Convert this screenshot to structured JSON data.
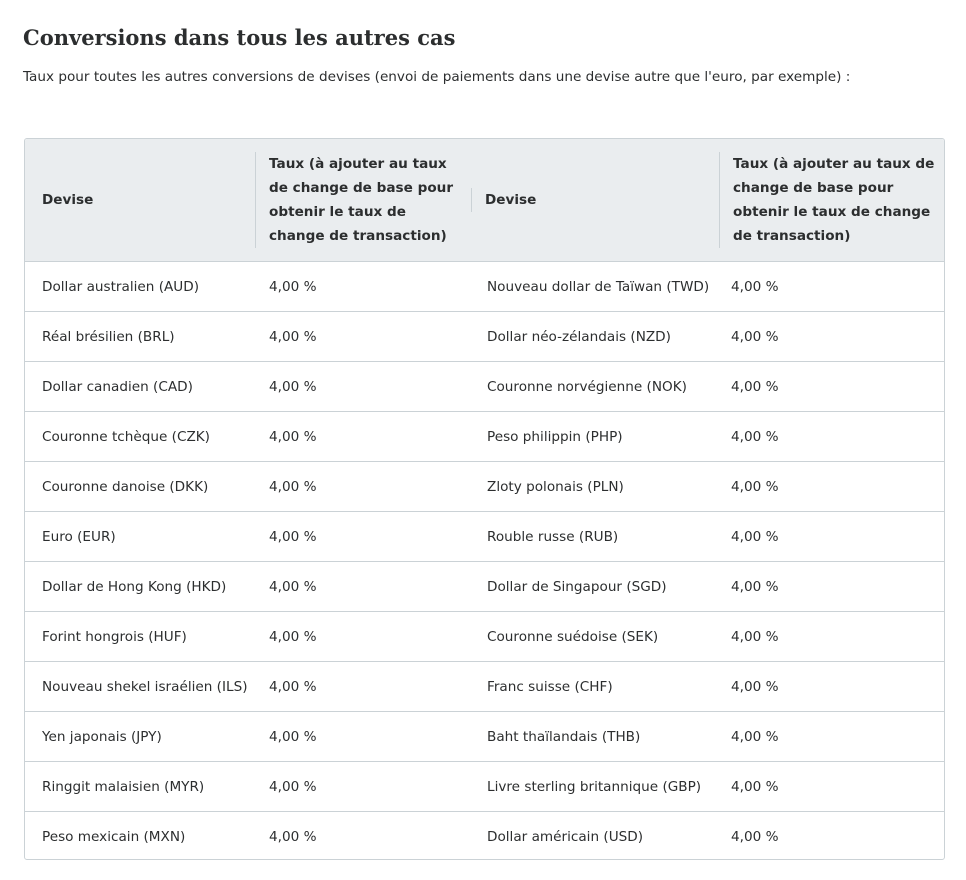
{
  "heading": "Conversions dans tous les autres cas",
  "intro": "Taux pour toutes les autres conversions de devises (envoi de paiements dans une devise autre que l'euro, par exemple) :",
  "table": {
    "headers": {
      "currency": "Devise",
      "rate": "Taux (à ajouter au taux de change de base pour obtenir le taux de change de transaction)"
    },
    "rows": [
      {
        "left_currency": "Dollar australien (AUD)",
        "left_rate": "4,00 %",
        "right_currency": "Nouveau dollar de Taïwan (TWD)",
        "right_rate": "4,00 %"
      },
      {
        "left_currency": "Réal brésilien (BRL)",
        "left_rate": "4,00 %",
        "right_currency": "Dollar néo-zélandais (NZD)",
        "right_rate": "4,00 %"
      },
      {
        "left_currency": "Dollar canadien (CAD)",
        "left_rate": "4,00 %",
        "right_currency": "Couronne norvégienne (NOK)",
        "right_rate": "4,00 %"
      },
      {
        "left_currency": "Couronne tchèque (CZK)",
        "left_rate": "4,00 %",
        "right_currency": "Peso philippin (PHP)",
        "right_rate": "4,00 %"
      },
      {
        "left_currency": "Couronne danoise (DKK)",
        "left_rate": "4,00 %",
        "right_currency": "Zloty polonais (PLN)",
        "right_rate": "4,00 %"
      },
      {
        "left_currency": "Euro (EUR)",
        "left_rate": "4,00 %",
        "right_currency": "Rouble russe (RUB)",
        "right_rate": "4,00 %"
      },
      {
        "left_currency": "Dollar de Hong Kong (HKD)",
        "left_rate": "4,00 %",
        "right_currency": "Dollar de Singapour (SGD)",
        "right_rate": "4,00 %"
      },
      {
        "left_currency": "Forint hongrois (HUF)",
        "left_rate": "4,00 %",
        "right_currency": "Couronne suédoise (SEK)",
        "right_rate": "4,00 %"
      },
      {
        "left_currency": "Nouveau shekel israélien (ILS)",
        "left_rate": "4,00 %",
        "right_currency": "Franc suisse (CHF)",
        "right_rate": "4,00 %"
      },
      {
        "left_currency": "Yen japonais (JPY)",
        "left_rate": "4,00 %",
        "right_currency": "Baht thaïlandais (THB)",
        "right_rate": "4,00 %"
      },
      {
        "left_currency": "Ringgit malaisien (MYR)",
        "left_rate": "4,00 %",
        "right_currency": "Livre sterling britannique (GBP)",
        "right_rate": "4,00 %"
      },
      {
        "left_currency": "Peso mexicain (MXN)",
        "left_rate": "4,00 %",
        "right_currency": "Dollar américain (USD)",
        "right_rate": "4,00 %"
      }
    ]
  }
}
